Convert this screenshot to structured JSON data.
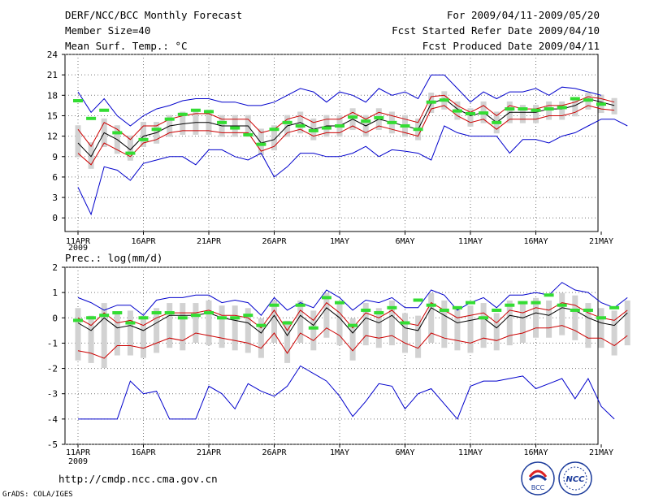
{
  "header": {
    "title": "DERF/NCC/BCC Monthly Forecast",
    "member_size": "Member Size=40",
    "variable": "Mean Surf. Temp.: °C",
    "period": "For 2009/04/11-2009/05/20",
    "fcst_started": "Fcst Started Refer Date 2009/04/10",
    "fcst_produced": "Fcst Produced Date 2009/04/11"
  },
  "footer": {
    "url": "http://cmdp.ncc.cma.gov.cn",
    "grads": "GrADS: COLA/IGES",
    "logo_bcc": "BCC",
    "logo_ncc": "NCC"
  },
  "colors": {
    "max_min": "#0000cc",
    "quartile": "#cc0000",
    "mean": "#000000",
    "obs": "#33dd33",
    "box": "#d2d2d2"
  },
  "chart_data": [
    {
      "type": "line",
      "title": "Mean Surf. Temp.: °C",
      "x_tick_labels": [
        "11APR",
        "16APR",
        "21APR",
        "26APR",
        "1MAY",
        "6MAY",
        "11MAY",
        "16MAY",
        "21MAY"
      ],
      "year_label": "2009",
      "ylim": [
        -2,
        24
      ],
      "yticks": [
        0,
        3,
        6,
        9,
        12,
        15,
        18,
        21,
        24
      ],
      "ytick_labels": [
        "0",
        "3",
        "6",
        "9",
        "12",
        "15",
        "18",
        "21",
        "24"
      ],
      "days": 39,
      "series": [
        {
          "name": "max",
          "values": [
            4.5,
            0.5,
            7.5,
            7,
            5.5,
            8,
            8.5,
            9,
            9,
            7.8,
            10,
            10,
            9,
            8.5,
            9.5,
            6,
            7.5,
            9.5,
            9.5,
            9,
            9,
            9.5,
            10.5,
            9,
            10,
            9.8,
            9.5,
            8.5,
            13.5,
            12.5,
            12,
            12,
            12,
            9.5,
            11.5,
            11.5,
            11,
            12,
            12.5,
            13.5,
            14.5,
            14.5,
            13.5
          ]
        },
        {
          "name": "p25",
          "values": [
            9.5,
            7.8,
            11,
            10,
            9,
            11,
            11.5,
            12.5,
            12.8,
            12.8,
            12.8,
            12.5,
            12.5,
            12.5,
            9.8,
            10.5,
            12.5,
            13,
            12,
            12.5,
            12.5,
            13.5,
            12.5,
            13.5,
            13,
            12.5,
            12,
            16,
            16.5,
            15,
            14,
            14.5,
            13,
            14.5,
            14.5,
            14.5,
            15,
            15,
            15.5,
            16.5,
            16,
            15.8
          ]
        },
        {
          "name": "mean",
          "values": [
            11,
            9,
            12.5,
            11.5,
            10,
            12,
            12.5,
            13.5,
            13.8,
            14,
            14,
            13.5,
            13.5,
            13.5,
            11,
            11.5,
            13.5,
            14,
            13,
            13.5,
            13.5,
            14.5,
            13.5,
            14.5,
            14,
            13.5,
            13,
            16.8,
            17.5,
            16,
            15,
            15.5,
            14,
            15.5,
            15.5,
            15.5,
            16,
            16,
            16.5,
            17.5,
            17,
            16.5
          ]
        },
        {
          "name": "p75",
          "values": [
            13,
            10.5,
            14,
            13,
            11.5,
            13.5,
            13.5,
            14.5,
            15,
            15.3,
            15.3,
            14.5,
            14.5,
            14.5,
            12.5,
            13,
            14.5,
            15,
            14,
            14.5,
            14.5,
            15.5,
            14.5,
            15.5,
            15,
            14.5,
            14,
            17.8,
            18,
            16.5,
            15.5,
            16.5,
            15,
            16.5,
            16,
            16,
            16.5,
            16.5,
            17,
            17.8,
            17.5,
            17
          ]
        },
        {
          "name": "min_upper",
          "values": [
            18.5,
            15.5,
            17.5,
            15,
            13.5,
            15,
            16,
            16.5,
            17.2,
            17.5,
            17.5,
            17,
            17,
            16.5,
            16.5,
            17,
            18,
            19,
            18.5,
            17,
            18.5,
            18,
            17,
            19,
            18,
            18.5,
            17.5,
            21,
            21,
            19,
            17,
            18.5,
            17.5,
            18.5,
            18.5,
            19,
            18,
            19.2,
            19,
            18.5,
            18
          ]
        },
        {
          "name": "obs",
          "values": [
            17.2,
            14.6,
            15.8,
            12.5,
            9.5,
            11.5,
            13,
            14.5,
            15.2,
            15.8,
            15.6,
            14,
            13.2,
            12.2,
            10.8,
            13,
            14,
            13.5,
            12.8,
            13.2,
            13.5,
            14.8,
            14.2,
            14.7,
            14,
            13.5,
            13,
            17,
            17.3,
            15.7,
            15.3,
            15.4,
            14,
            16,
            16,
            15.8,
            16,
            16.2,
            17.5,
            17.3,
            16.7
          ]
        }
      ]
    },
    {
      "type": "line",
      "title": "Prec.: log(mm/d)",
      "x_tick_labels": [
        "11APR",
        "16APR",
        "21APR",
        "26APR",
        "1MAY",
        "6MAY",
        "11MAY",
        "16MAY",
        "21MAY"
      ],
      "year_label": "2009",
      "ylim": [
        -5,
        2
      ],
      "yticks": [
        -5,
        -4,
        -3,
        -2,
        -1,
        0,
        1,
        2
      ],
      "ytick_labels": [
        "-5",
        "-4",
        "-3",
        "-2",
        "-1",
        "0",
        "1",
        "2"
      ],
      "series": [
        {
          "name": "max",
          "values": [
            0.8,
            0.6,
            0.3,
            0.5,
            0.5,
            0.1,
            0.7,
            0.8,
            0.8,
            0.9,
            0.9,
            0.6,
            0.7,
            0.6,
            0.1,
            0.8,
            0.3,
            0.6,
            0.4,
            1.1,
            0.8,
            0.3,
            0.7,
            0.6,
            0.8,
            0.4,
            0.4,
            1.1,
            0.9,
            0.3,
            0.6,
            0.8,
            0.4,
            0.9,
            0.9,
            1,
            0.9,
            1.4,
            1.1,
            1,
            0.6,
            0.4,
            0.8
          ]
        },
        {
          "name": "p75",
          "values": [
            0,
            -0.3,
            0.2,
            -0.2,
            -0.1,
            -0.3,
            0,
            0.2,
            0.2,
            0.2,
            0.3,
            0.1,
            0.1,
            0,
            -0.4,
            0.3,
            -0.5,
            0.3,
            -0.1,
            0.6,
            0.2,
            -0.4,
            0.2,
            0,
            0.3,
            -0.2,
            -0.3,
            0.6,
            0.3,
            0,
            0.1,
            0.2,
            -0.2,
            0.3,
            0.2,
            0.4,
            0.3,
            0.6,
            0.5,
            0.2,
            0,
            -0.1,
            0.3
          ]
        },
        {
          "name": "mean",
          "values": [
            -0.2,
            -0.5,
            0,
            -0.4,
            -0.3,
            -0.5,
            -0.2,
            0.1,
            0.1,
            0.1,
            0.2,
            0,
            -0.1,
            -0.2,
            -0.6,
            0.1,
            -0.7,
            0.1,
            -0.3,
            0.4,
            0,
            -0.6,
            0,
            -0.2,
            0.1,
            -0.4,
            -0.5,
            0.4,
            0.1,
            -0.2,
            -0.1,
            0,
            -0.4,
            0.1,
            0,
            0.2,
            0.1,
            0.4,
            0.3,
            0,
            -0.2,
            -0.3,
            0.2
          ]
        },
        {
          "name": "p25",
          "values": [
            -1.3,
            -1.4,
            -1.6,
            -1.1,
            -1.1,
            -1.2,
            -1,
            -0.8,
            -0.9,
            -0.6,
            -0.7,
            -0.8,
            -0.9,
            -1,
            -1.2,
            -0.6,
            -1.4,
            -0.6,
            -0.9,
            -0.4,
            -0.7,
            -1.3,
            -0.7,
            -0.8,
            -0.7,
            -1,
            -1.2,
            -0.6,
            -0.8,
            -0.9,
            -1,
            -0.8,
            -0.9,
            -0.7,
            -0.6,
            -0.4,
            -0.4,
            -0.3,
            -0.5,
            -0.8,
            -0.8,
            -1.1,
            -0.7
          ]
        },
        {
          "name": "min",
          "values": [
            -4,
            -4,
            -4,
            -4,
            -2.5,
            -3,
            -2.9,
            -4,
            -4,
            -4,
            -2.7,
            -3,
            -3.6,
            -2.6,
            -2.9,
            -3.1,
            -2.7,
            -1.9,
            -2.2,
            -2.5,
            -3.1,
            -3.9,
            -3.3,
            -2.6,
            -2.7,
            -3.6,
            -3,
            -2.8,
            -3.4,
            -4,
            -2.7,
            -2.5,
            -2.5,
            -2.4,
            -2.3,
            -2.8,
            -2.6,
            -2.4,
            -3.2,
            -2.4,
            -3.5,
            -4
          ]
        },
        {
          "name": "obs",
          "values": [
            -0.1,
            0,
            0.1,
            0.2,
            -0.2,
            0,
            0.2,
            0.2,
            0,
            0.1,
            0.2,
            0,
            0,
            0.1,
            -0.3,
            0.5,
            -0.2,
            0.5,
            -0.4,
            0.8,
            0.6,
            -0.3,
            0.3,
            0.2,
            0.4,
            -0.2,
            0.7,
            0.5,
            0.3,
            0.4,
            0.6,
            0,
            0.3,
            0.5,
            0.6,
            0.6,
            0.9,
            0.5,
            0.3,
            0.3,
            0,
            0.4
          ]
        }
      ]
    }
  ]
}
